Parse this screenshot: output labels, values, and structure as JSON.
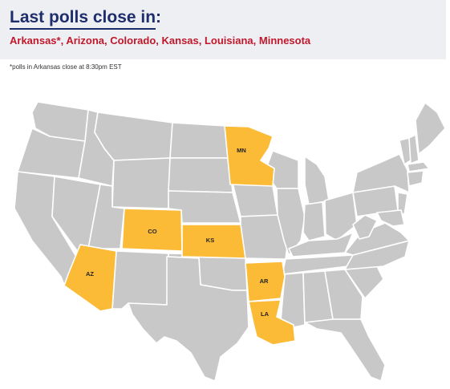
{
  "header": {
    "title": "Last polls close in:",
    "states_text": "Arkansas*, Arizona, Colorado, Kansas, Louisiana, Minnesota",
    "footnote": "*polls in Arkansas close at 8:30pm EST"
  },
  "colors": {
    "highlight": "#fbbb36",
    "default_state": "#c8c8c8",
    "border": "#ffffff",
    "title": "#1e2d6b",
    "states_text": "#c0182b",
    "header_band": "#eeeff3"
  },
  "map": {
    "highlighted_states": [
      {
        "abbr": "MN",
        "name": "Minnesota"
      },
      {
        "abbr": "CO",
        "name": "Colorado"
      },
      {
        "abbr": "KS",
        "name": "Kansas"
      },
      {
        "abbr": "AZ",
        "name": "Arizona"
      },
      {
        "abbr": "AR",
        "name": "Arkansas"
      },
      {
        "abbr": "LA",
        "name": "Louisiana"
      }
    ]
  }
}
